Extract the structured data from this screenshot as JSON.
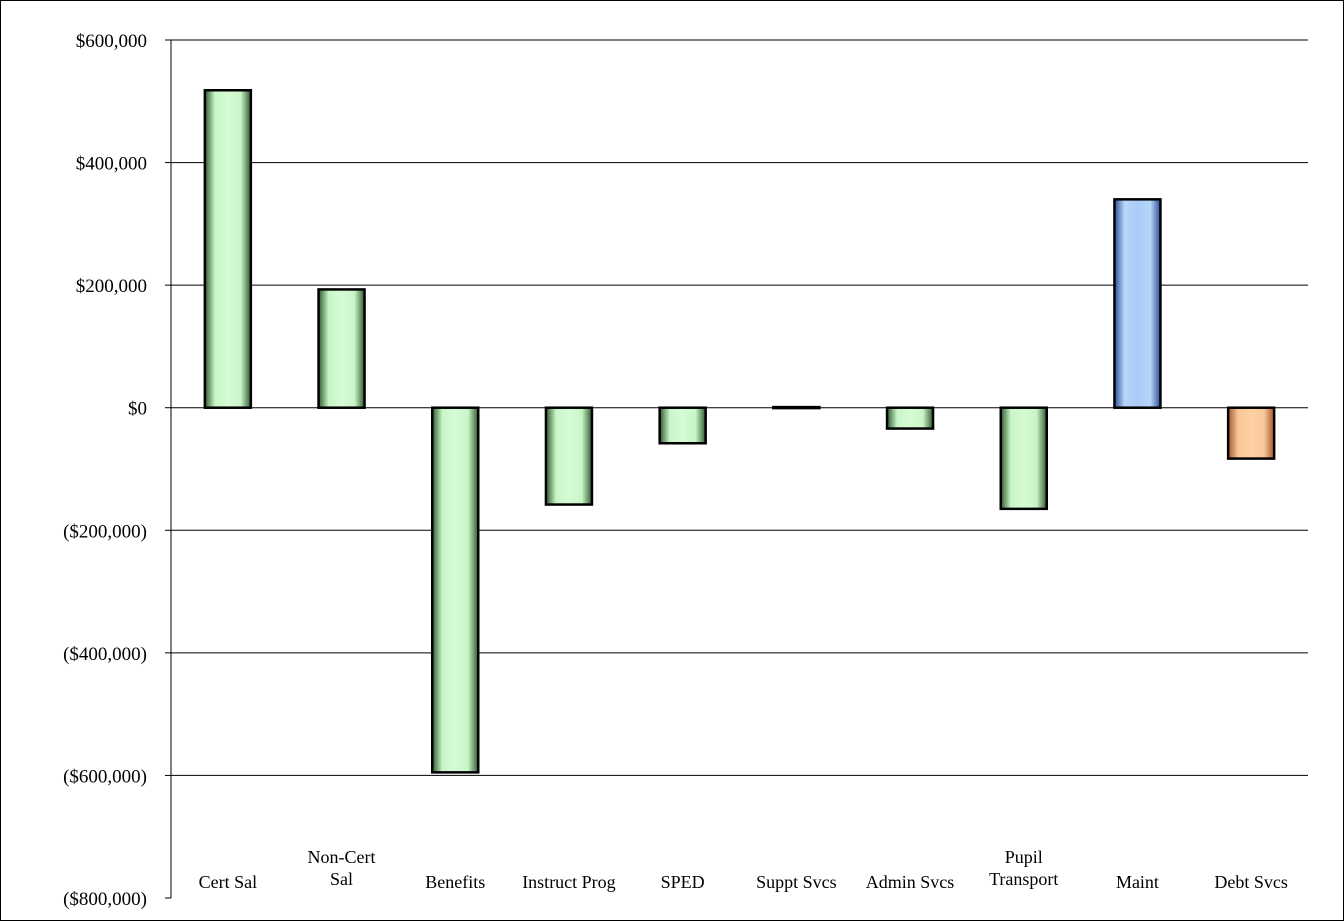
{
  "chart_data": {
    "type": "bar",
    "title": "",
    "xlabel": "",
    "ylabel": "",
    "ylim": [
      -800000,
      600000
    ],
    "grid": true,
    "legend": "none",
    "y_ticks": [
      600000,
      400000,
      200000,
      0,
      -200000,
      -400000,
      -600000,
      -800000
    ],
    "y_tick_labels": [
      "$600,000",
      "$400,000",
      "$200,000",
      "$0",
      "($200,000)",
      "($400,000)",
      "($600,000)",
      "($800,000)"
    ],
    "categories": [
      [
        "Cert Sal"
      ],
      [
        "Non-Cert",
        "Sal"
      ],
      [
        "Benefits"
      ],
      [
        "Instruct Prog"
      ],
      [
        "SPED"
      ],
      [
        "Suppt Svcs"
      ],
      [
        "Admin Svcs"
      ],
      [
        "Pupil",
        "Transport"
      ],
      [
        "Maint"
      ],
      [
        "Debt Svcs"
      ]
    ],
    "values": [
      518000,
      193000,
      -595000,
      -158000,
      -58000,
      1000,
      -34000,
      -165000,
      340000,
      -83000
    ],
    "bar_colors": [
      "green",
      "green",
      "green",
      "green",
      "green",
      "green",
      "green",
      "green",
      "blue",
      "orange"
    ]
  },
  "colors": {
    "green": {
      "edge": "#2f5a2f",
      "mid": "#d6fbd6",
      "light": "#c8f5c8"
    },
    "blue": {
      "edge": "#2d4f9a",
      "mid": "#a9ccf7",
      "light": "#b7d6f8"
    },
    "orange": {
      "edge": "#a8562a",
      "mid": "#ffd0a2",
      "light": "#f8c89b"
    },
    "grid": "#000000",
    "bar_outline": "#000000"
  }
}
